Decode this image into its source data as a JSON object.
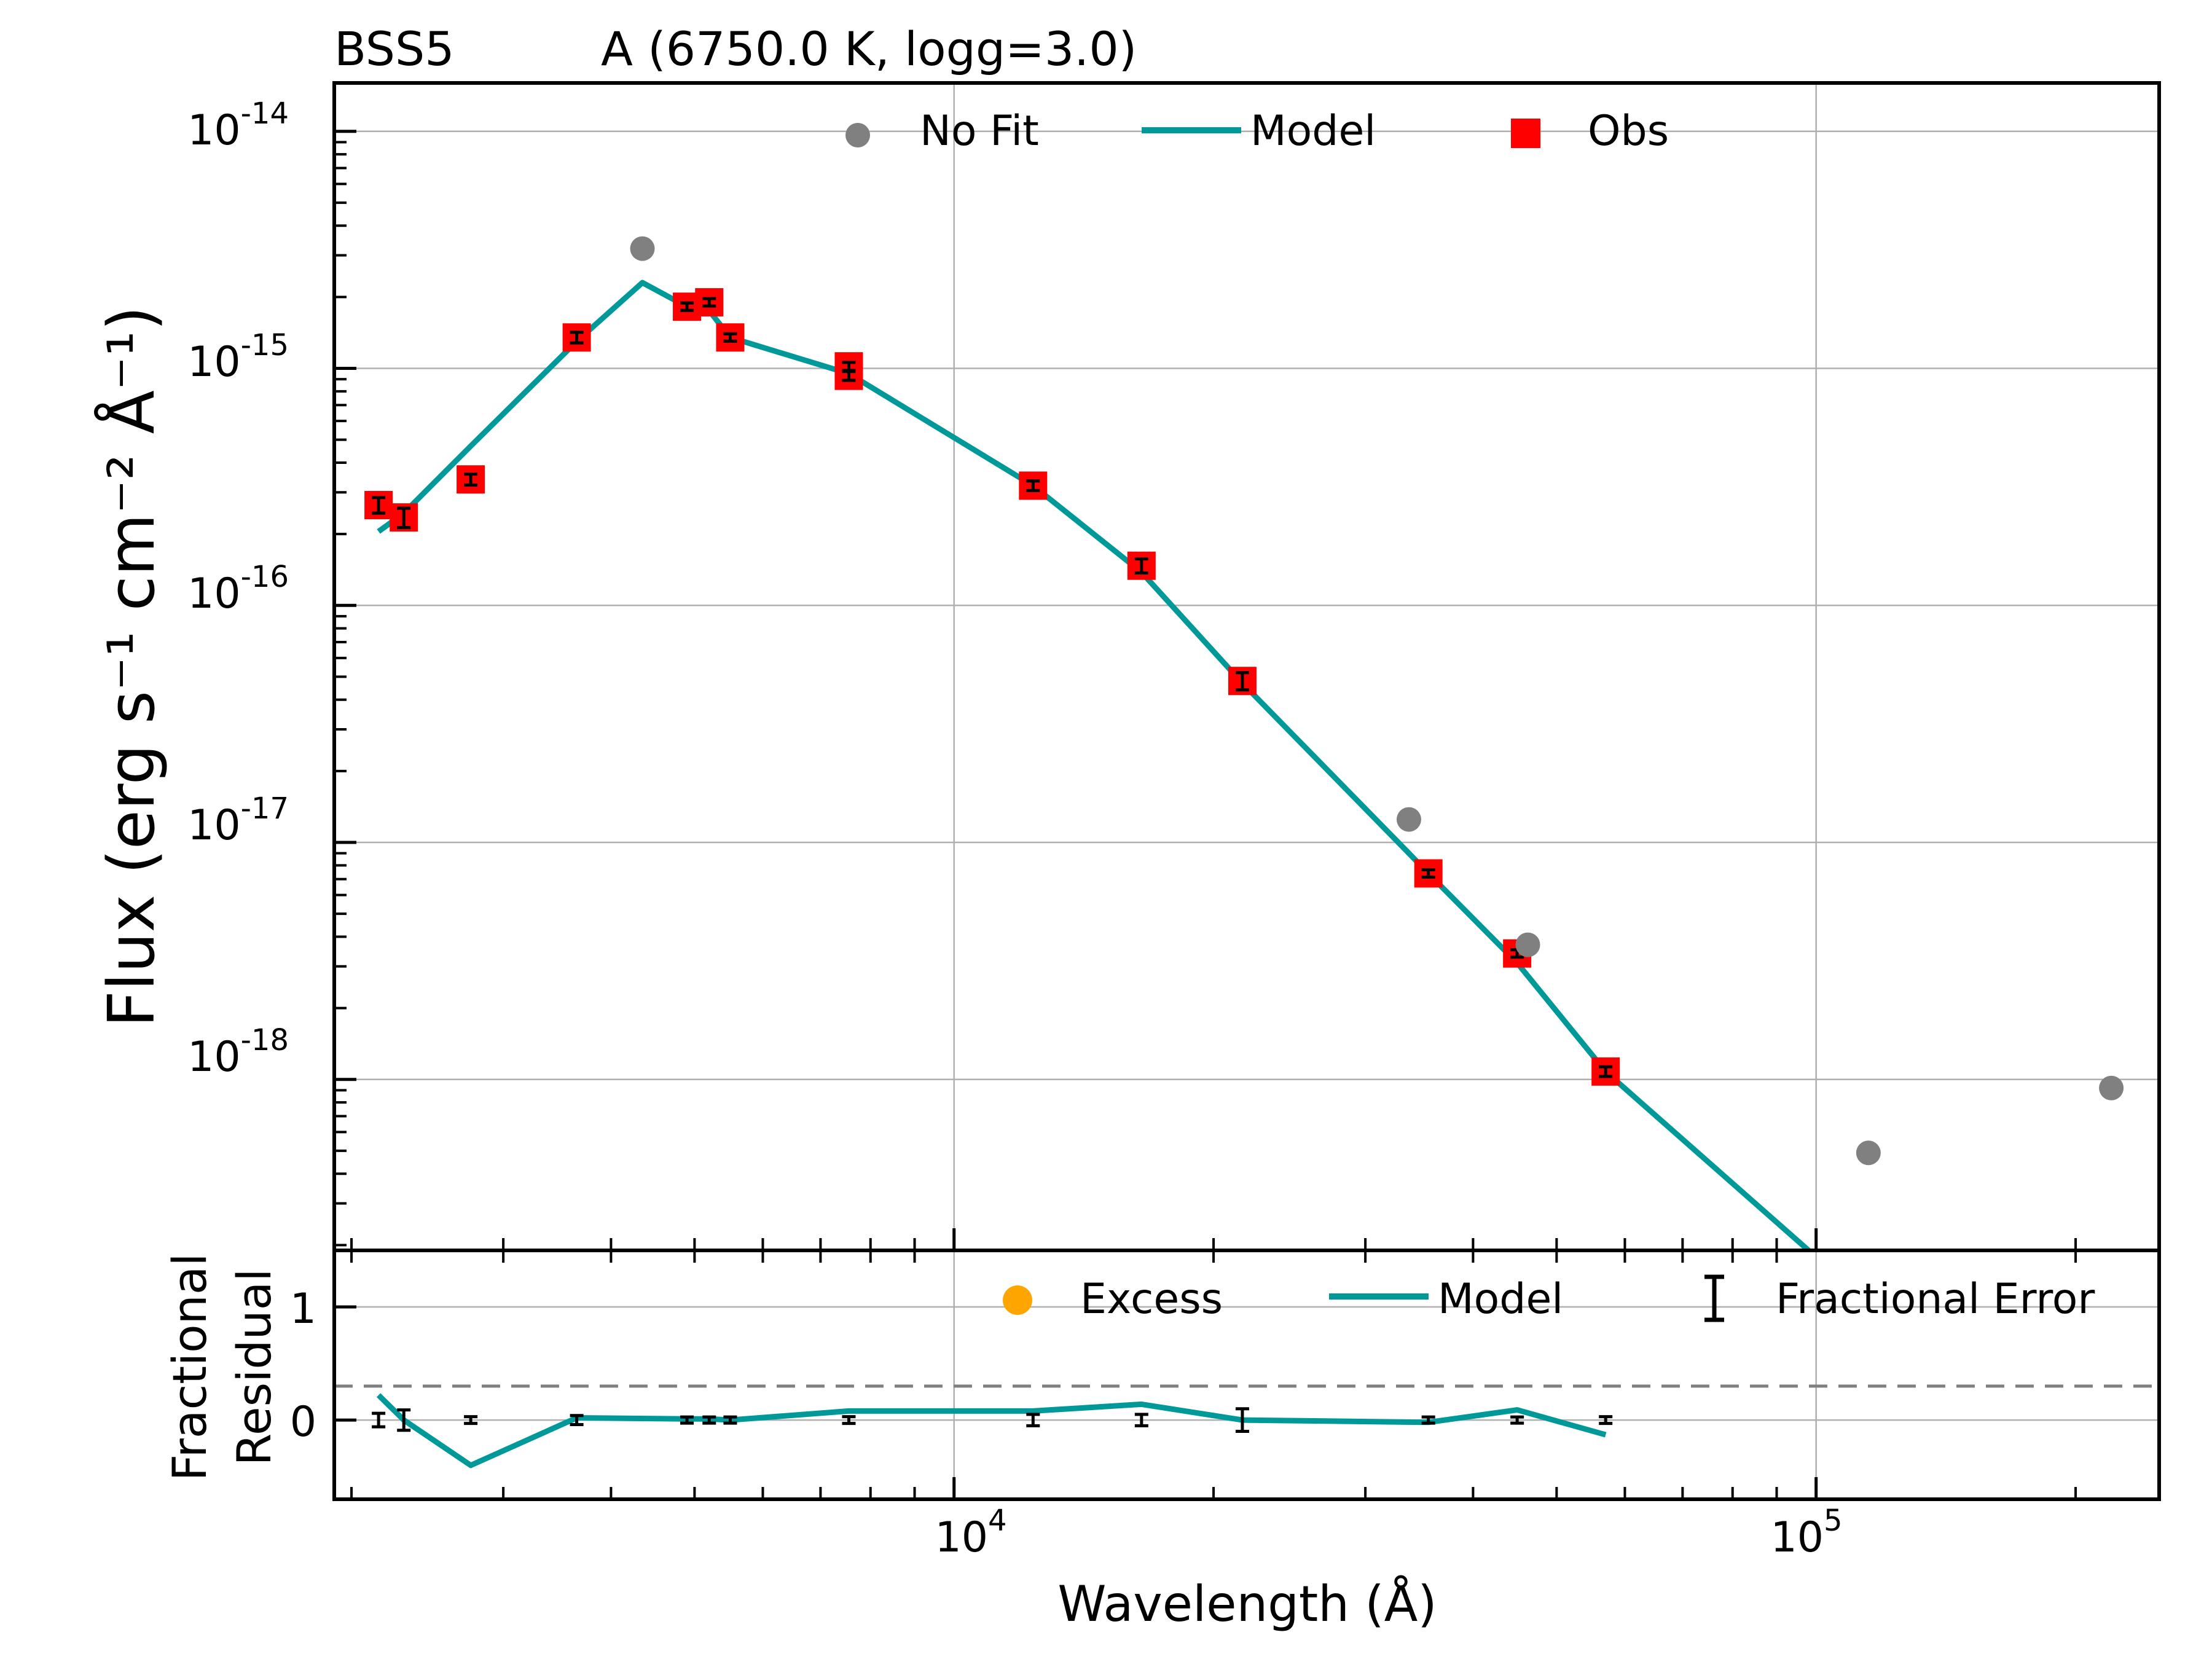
{
  "title": {
    "object": "BSS5",
    "fit": "A (6750.0 K, logg=3.0)"
  },
  "main_panel": {
    "ylabel": "Flux (erg s⁻¹ cm⁻² Å⁻¹)",
    "ytick_exponents": [
      "-14",
      "-15",
      "-16",
      "-17",
      "-18"
    ],
    "ytick_base": "10",
    "legend": {
      "nofit": "No Fit",
      "model": "Model",
      "obs": "Obs"
    }
  },
  "residual_panel": {
    "ylabel_line1": "Fractional",
    "ylabel_line2": "Residual",
    "ytick_labels": [
      "1",
      "0"
    ],
    "legend": {
      "excess": "Excess",
      "model": "Model",
      "error": "Fractional Error"
    }
  },
  "xaxis": {
    "xlabel": "Wavelength (Å)",
    "xtick_base": "10",
    "xtick_exponents": [
      "4",
      "5"
    ]
  },
  "colors": {
    "model": "#009999",
    "obs": "#ff0000",
    "nofit": "#808080",
    "excess": "#ffa500",
    "error": "#000000",
    "grid": "#b0b0b0",
    "threshold": "#808080"
  },
  "chart_data": [
    {
      "type": "scatter",
      "panel": "sed",
      "xscale": "log",
      "yscale": "log",
      "xlim": [
        1910,
        250000
      ],
      "ylim": [
        1.9e-19,
        1.6e-14
      ],
      "grid": true,
      "legend_position": "top",
      "obs": [
        {
          "x": 2150,
          "y": 2.65e-16,
          "err": 2e-17
        },
        {
          "x": 2300,
          "y": 2.35e-16,
          "err": 2.2e-17
        },
        {
          "x": 2750,
          "y": 3.4e-16,
          "err": 1.8e-17
        },
        {
          "x": 3650,
          "y": 1.35e-15,
          "err": 7e-17
        },
        {
          "x": 4900,
          "y": 1.82e-15,
          "err": 5e-17
        },
        {
          "x": 5200,
          "y": 1.9e-15,
          "err": 5e-17
        },
        {
          "x": 5500,
          "y": 1.35e-15,
          "err": 4e-17
        },
        {
          "x": 7550,
          "y": 1.02e-15,
          "err": 4e-17
        },
        {
          "x": 7550,
          "y": 9.3e-16,
          "err": 4e-17
        },
        {
          "x": 12350,
          "y": 3.2e-16,
          "err": 1.5e-17
        },
        {
          "x": 16500,
          "y": 1.47e-16,
          "err": 1e-17
        },
        {
          "x": 21600,
          "y": 4.8e-17,
          "err": 4e-18
        },
        {
          "x": 35500,
          "y": 7.4e-18,
          "err": 2e-19
        },
        {
          "x": 45000,
          "y": 3.4e-18,
          "err": 1e-19
        },
        {
          "x": 57000,
          "y": 1.08e-18,
          "err": 5e-20
        }
      ],
      "nofit": [
        {
          "x": 4350,
          "y": 3.2e-15
        },
        {
          "x": 33700,
          "y": 1.25e-17
        },
        {
          "x": 46300,
          "y": 3.7e-18
        },
        {
          "x": 115000,
          "y": 4.9e-19
        },
        {
          "x": 220000,
          "y": 9.2e-19
        }
      ],
      "model": {
        "x": [
          2150,
          2300,
          2750,
          3650,
          4350,
          4900,
          5200,
          5500,
          7550,
          12350,
          16500,
          21600,
          33700,
          35500,
          45000,
          57000,
          98000
        ],
        "y": [
          2.05e-16,
          2.45e-16,
          4.7e-16,
          1.3e-15,
          2.3e-15,
          1.82e-15,
          1.75e-15,
          1.35e-15,
          9.5e-16,
          3.2e-16,
          1.38e-16,
          4.7e-17,
          9e-18,
          7.4e-18,
          3.1e-18,
          1.08e-18,
          1.9e-19
        ]
      }
    },
    {
      "type": "scatter",
      "panel": "residual",
      "xscale": "log",
      "ylim": [
        -0.7,
        1.5
      ],
      "yticks": [
        0,
        1
      ],
      "threshold": 0.3,
      "grid": true,
      "legend_position": "top-right",
      "errors": [
        {
          "x": 2150,
          "y": 0,
          "err": 0.06
        },
        {
          "x": 2300,
          "y": 0,
          "err": 0.09
        },
        {
          "x": 2750,
          "y": 0,
          "err": 0.03
        },
        {
          "x": 3650,
          "y": 0,
          "err": 0.04
        },
        {
          "x": 4900,
          "y": 0,
          "err": 0.01
        },
        {
          "x": 5200,
          "y": 0,
          "err": 0.01
        },
        {
          "x": 5500,
          "y": 0,
          "err": 0.01
        },
        {
          "x": 7550,
          "y": 0,
          "err": 0.03
        },
        {
          "x": 12350,
          "y": 0,
          "err": 0.05
        },
        {
          "x": 16500,
          "y": 0,
          "err": 0.05
        },
        {
          "x": 21600,
          "y": 0,
          "err": 0.1
        },
        {
          "x": 35500,
          "y": 0,
          "err": 0.005
        },
        {
          "x": 45000,
          "y": 0,
          "err": 0.005
        },
        {
          "x": 57000,
          "y": 0,
          "err": 0.03
        }
      ],
      "model": {
        "x": [
          2150,
          2300,
          2750,
          3650,
          4900,
          5200,
          5500,
          7550,
          12350,
          16500,
          21600,
          35500,
          45000,
          57000
        ],
        "y": [
          0.22,
          0.0,
          -0.4,
          0.02,
          0.01,
          0.01,
          0.0,
          0.08,
          0.08,
          0.14,
          0.0,
          -0.02,
          0.09,
          -0.13
        ]
      }
    }
  ]
}
